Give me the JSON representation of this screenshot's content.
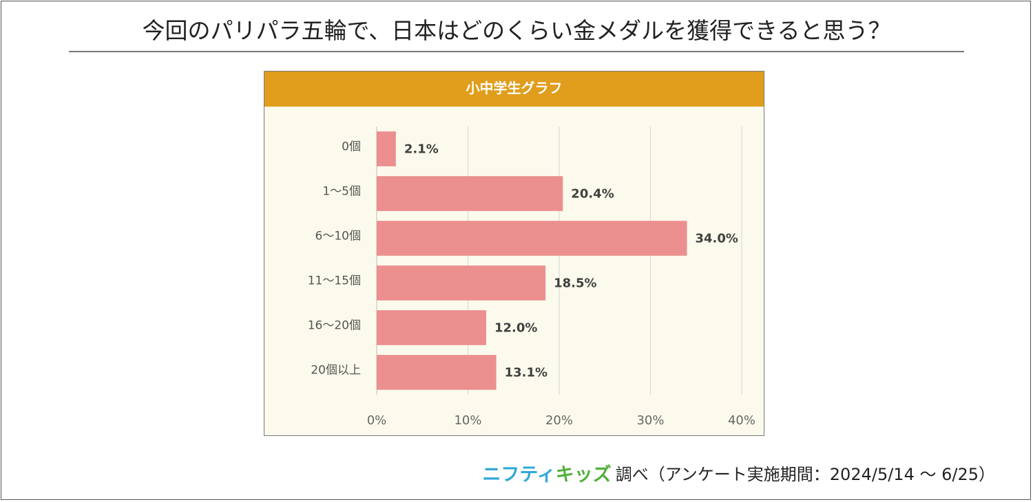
{
  "title": "今回のパリパラ五輪で、日本はどのくらい金メダルを獲得できると思う？",
  "panel_title": "小中学生グラフ",
  "chart_data": {
    "type": "bar",
    "orientation": "horizontal",
    "title": "小中学生グラフ",
    "categories": [
      "0個",
      "1～5個",
      "6～10個",
      "11～15個",
      "16～20個",
      "20個以上"
    ],
    "values": [
      2.1,
      20.4,
      34.0,
      18.5,
      12.0,
      13.1
    ],
    "value_labels": [
      "2.1%",
      "20.4%",
      "34.0%",
      "18.5%",
      "12.0%",
      "13.1%"
    ],
    "xlim": [
      0,
      40
    ],
    "xticks": [
      0,
      10,
      20,
      30,
      40
    ],
    "xtick_labels": [
      "0%",
      "10%",
      "20%",
      "30%",
      "40%"
    ],
    "grid": true,
    "bar_color": "#eb8f8f"
  },
  "footer": {
    "logo_part1": "ニフティ",
    "logo_part2": "キッズ",
    "text": "調べ（アンケート実施期間：2024/5/14 ～ 6/25）"
  }
}
